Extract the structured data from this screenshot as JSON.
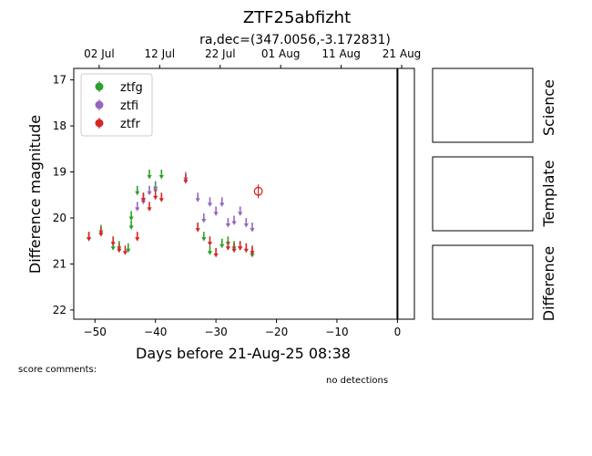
{
  "chart_data": {
    "type": "scatter",
    "title": "ZTF25abfizht",
    "subtitle": "ra,dec=(347.0056,-3.172831)",
    "xlabel": "Days before 21-Aug-25 08:38",
    "ylabel": "Difference magnitude",
    "xlim": [
      -53.5,
      2.8
    ],
    "ylim": [
      22.2,
      16.75
    ],
    "y_inverted": true,
    "x_ticks": [
      -50,
      -40,
      -30,
      -20,
      -10,
      0
    ],
    "x_tick_labels": [
      "−50",
      "−40",
      "−30",
      "−20",
      "−10",
      "0"
    ],
    "y_ticks": [
      17,
      18,
      19,
      20,
      21,
      22
    ],
    "top_axis_ticks": [
      {
        "x": -49.3,
        "label": "02 Jul"
      },
      {
        "x": -39.3,
        "label": "12 Jul"
      },
      {
        "x": -29.3,
        "label": "22 Jul"
      },
      {
        "x": -19.3,
        "label": "01 Aug"
      },
      {
        "x": -9.3,
        "label": "11 Aug"
      },
      {
        "x": 0.7,
        "label": "21 Aug"
      }
    ],
    "reference_line_x": 0,
    "legend": {
      "placement": "top-left",
      "entries": [
        "ztfg",
        "ztfi",
        "ztfr"
      ]
    },
    "series": [
      {
        "name": "ztfg",
        "color": "#2ca02c",
        "marker": "down-arrow",
        "points": [
          [
            -51,
            20.4
          ],
          [
            -49,
            20.25
          ],
          [
            -47,
            20.6
          ],
          [
            -46,
            20.6
          ],
          [
            -44.5,
            20.65
          ],
          [
            -44,
            19.95
          ],
          [
            -44,
            20.15
          ],
          [
            -43,
            19.4
          ],
          [
            -42,
            19.55
          ],
          [
            -41,
            19.05
          ],
          [
            -40,
            19.3
          ],
          [
            -39,
            19.05
          ],
          [
            -32,
            20.4
          ],
          [
            -31,
            20.7
          ],
          [
            -29,
            20.55
          ],
          [
            -28,
            20.5
          ],
          [
            -27,
            20.6
          ],
          [
            -26,
            20.6
          ],
          [
            -24,
            20.75
          ]
        ]
      },
      {
        "name": "ztfi",
        "color": "#9467bd",
        "marker": "down-arrow",
        "points": [
          [
            -43,
            19.75
          ],
          [
            -42,
            19.6
          ],
          [
            -41,
            19.4
          ],
          [
            -40,
            19.35
          ],
          [
            -35,
            19.1
          ],
          [
            -33,
            19.55
          ],
          [
            -32,
            20.0
          ],
          [
            -31,
            19.65
          ],
          [
            -30,
            19.85
          ],
          [
            -29,
            19.65
          ],
          [
            -28,
            20.1
          ],
          [
            -27,
            20.05
          ],
          [
            -26,
            19.85
          ],
          [
            -25,
            20.1
          ],
          [
            -24,
            20.2
          ]
        ]
      },
      {
        "name": "ztfr",
        "color": "#d62728",
        "marker": "down-arrow",
        "points": [
          [
            -51,
            20.4
          ],
          [
            -49,
            20.3
          ],
          [
            -47,
            20.5
          ],
          [
            -46,
            20.65
          ],
          [
            -45,
            20.7
          ],
          [
            -43,
            20.4
          ],
          [
            -42,
            19.55
          ],
          [
            -41,
            19.75
          ],
          [
            -40,
            19.5
          ],
          [
            -39,
            19.55
          ],
          [
            -35,
            19.15
          ],
          [
            -33,
            20.2
          ],
          [
            -31,
            20.5
          ],
          [
            -30,
            20.75
          ],
          [
            -28,
            20.6
          ],
          [
            -27,
            20.65
          ],
          [
            -26,
            20.6
          ],
          [
            -25,
            20.65
          ],
          [
            -24,
            20.7
          ]
        ]
      },
      {
        "name": "ztfr",
        "color": "#d62728",
        "marker": "open-circle",
        "detection": true,
        "points": [
          [
            -23,
            19.42
          ]
        ],
        "error": [
          0.15
        ]
      }
    ]
  },
  "side_panels": [
    "Science",
    "Template",
    "Difference"
  ],
  "notes": {
    "score_comments": "score comments:",
    "detections": "no detections"
  }
}
